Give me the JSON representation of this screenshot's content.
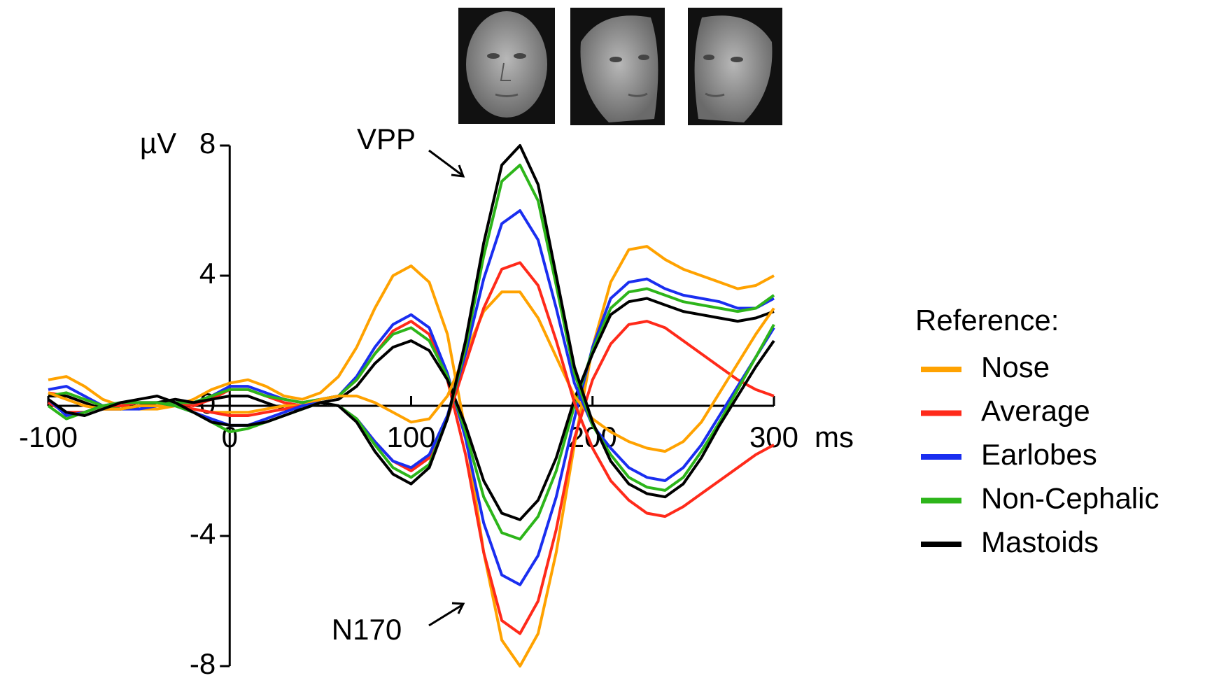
{
  "chart_data": {
    "type": "line",
    "x": [
      -100,
      -90,
      -80,
      -70,
      -60,
      -50,
      -40,
      -30,
      -20,
      -10,
      0,
      10,
      20,
      30,
      40,
      50,
      60,
      70,
      80,
      90,
      100,
      110,
      120,
      130,
      140,
      150,
      160,
      170,
      180,
      190,
      200,
      210,
      220,
      230,
      240,
      250,
      260,
      270,
      280,
      290,
      300
    ],
    "xlim": [
      -100,
      300
    ],
    "xticks": [
      -100,
      0,
      100,
      200,
      300
    ],
    "ylim": [
      -8,
      8
    ],
    "yticks": [
      -8,
      -4,
      0,
      4,
      8
    ],
    "y_unit": "µV",
    "x_unit": "ms",
    "legend_title": "Reference:",
    "annotations": [
      {
        "text": "VPP"
      },
      {
        "text": "N170"
      }
    ],
    "series": [
      {
        "name": "Nose",
        "color": "#ffa200",
        "values": [
          0.8,
          0.9,
          0.6,
          0.2,
          0,
          -0.1,
          -0.1,
          0,
          0.2,
          0.5,
          0.7,
          0.8,
          0.6,
          0.3,
          0.2,
          0.4,
          0.9,
          1.8,
          3.0,
          4.0,
          4.3,
          3.8,
          2.2,
          -0.8,
          -4.5,
          -7.2,
          -8.0,
          -7.0,
          -4.5,
          -1.2,
          1.8,
          3.8,
          4.8,
          4.9,
          4.5,
          4.2,
          4.0,
          3.8,
          3.6,
          3.7,
          4.0
        ]
      },
      {
        "name": "Average",
        "color": "#ff2a1a",
        "values": [
          0.4,
          0.3,
          0.1,
          -0.1,
          -0.1,
          0,
          0.1,
          0.1,
          0,
          0.2,
          0.5,
          0.5,
          0.3,
          0.1,
          0,
          0.2,
          0.3,
          0.8,
          1.6,
          2.3,
          2.6,
          2.2,
          0.8,
          -1.5,
          -4.5,
          -6.6,
          -7.0,
          -6.0,
          -3.8,
          -1.0,
          0.8,
          1.9,
          2.5,
          2.6,
          2.4,
          2.0,
          1.6,
          1.2,
          0.8,
          0.5,
          0.3
        ]
      },
      {
        "name": "Earlobes",
        "color": "#1a2ef0",
        "values": [
          0.5,
          0.6,
          0.3,
          0,
          -0.1,
          -0.1,
          0,
          0.1,
          0.1,
          0.3,
          0.6,
          0.6,
          0.4,
          0.2,
          0.1,
          0.2,
          0.3,
          0.9,
          1.8,
          2.5,
          2.8,
          2.4,
          1.0,
          -1.0,
          -3.6,
          -5.2,
          -5.5,
          -4.6,
          -2.8,
          -0.4,
          1.8,
          3.3,
          3.8,
          3.9,
          3.6,
          3.4,
          3.3,
          3.2,
          3.0,
          3.0,
          3.3
        ]
      },
      {
        "name": "Non-Cephalic",
        "color": "#2db51a",
        "values": [
          0.3,
          0.4,
          0.2,
          0,
          -0.1,
          0,
          0.1,
          0.1,
          0.1,
          0.3,
          0.5,
          0.5,
          0.3,
          0.2,
          0.1,
          0.2,
          0.3,
          0.8,
          1.6,
          2.2,
          2.4,
          2.0,
          0.9,
          -0.8,
          -2.8,
          -3.9,
          -4.1,
          -3.4,
          -2.0,
          0,
          1.7,
          3.0,
          3.5,
          3.6,
          3.4,
          3.2,
          3.1,
          3.0,
          2.9,
          3.0,
          3.4
        ]
      },
      {
        "name": "Mastoids",
        "color": "#000000",
        "values": [
          0.3,
          0.3,
          0.1,
          -0.1,
          -0.1,
          0,
          0.1,
          0.2,
          0.1,
          0.2,
          0.3,
          0.3,
          0.1,
          -0.1,
          -0.1,
          0.1,
          0.2,
          0.6,
          1.3,
          1.8,
          2.0,
          1.7,
          0.8,
          -0.6,
          -2.3,
          -3.3,
          -3.5,
          -2.9,
          -1.6,
          0.2,
          1.6,
          2.8,
          3.2,
          3.3,
          3.1,
          2.9,
          2.8,
          2.7,
          2.6,
          2.7,
          2.9
        ]
      },
      {
        "color": "#ffa200",
        "values": [
          0.4,
          0.2,
          0,
          -0.1,
          -0.1,
          0,
          0,
          0,
          -0.1,
          -0.2,
          -0.2,
          -0.2,
          -0.1,
          0,
          0,
          0.2,
          0.3,
          0.3,
          0.1,
          -0.2,
          -0.5,
          -0.4,
          0.3,
          1.6,
          2.9,
          3.5,
          3.5,
          2.7,
          1.5,
          0.3,
          -0.4,
          -0.8,
          -1.1,
          -1.3,
          -1.4,
          -1.1,
          -0.5,
          0.4,
          1.3,
          2.2,
          3.0
        ]
      },
      {
        "color": "#ff2a1a",
        "values": [
          0.1,
          -0.2,
          -0.2,
          0,
          0,
          0.1,
          0.1,
          0,
          -0.1,
          -0.2,
          -0.3,
          -0.3,
          -0.2,
          -0.1,
          0,
          0.1,
          0,
          -0.4,
          -1.1,
          -1.7,
          -2.0,
          -1.6,
          -0.4,
          1.3,
          3.0,
          4.2,
          4.4,
          3.7,
          2.0,
          0.1,
          -1.3,
          -2.3,
          -2.9,
          -3.3,
          -3.4,
          -3.1,
          -2.7,
          -2.3,
          -1.9,
          -1.5,
          -1.2
        ]
      },
      {
        "color": "#1a2ef0",
        "values": [
          0.2,
          -0.3,
          -0.2,
          0,
          0.1,
          0.1,
          0.1,
          0,
          -0.2,
          -0.4,
          -0.6,
          -0.6,
          -0.4,
          -0.2,
          0,
          0.1,
          0,
          -0.4,
          -1.1,
          -1.7,
          -1.9,
          -1.5,
          -0.3,
          1.6,
          3.9,
          5.6,
          6.0,
          5.1,
          3.0,
          0.7,
          -0.6,
          -1.3,
          -1.9,
          -2.2,
          -2.3,
          -1.9,
          -1.2,
          -0.3,
          0.6,
          1.5,
          2.4
        ]
      },
      {
        "color": "#2db51a",
        "values": [
          0,
          -0.4,
          -0.2,
          0,
          0.1,
          0.1,
          0.1,
          0,
          -0.2,
          -0.5,
          -0.8,
          -0.7,
          -0.5,
          -0.3,
          -0.1,
          0.1,
          0,
          -0.4,
          -1.2,
          -1.9,
          -2.2,
          -1.8,
          -0.4,
          1.8,
          4.6,
          6.9,
          7.4,
          6.3,
          3.7,
          1.0,
          -0.6,
          -1.5,
          -2.2,
          -2.5,
          -2.6,
          -2.2,
          -1.4,
          -0.5,
          0.5,
          1.5,
          2.5
        ]
      },
      {
        "color": "#000000",
        "values": [
          0.2,
          -0.2,
          -0.3,
          -0.1,
          0.1,
          0.2,
          0.3,
          0.1,
          -0.2,
          -0.5,
          -0.6,
          -0.6,
          -0.5,
          -0.3,
          -0.1,
          0.1,
          0,
          -0.5,
          -1.4,
          -2.1,
          -2.4,
          -1.9,
          -0.4,
          2.0,
          5.0,
          7.4,
          8.0,
          6.8,
          4.0,
          1.2,
          -0.5,
          -1.7,
          -2.4,
          -2.7,
          -2.8,
          -2.4,
          -1.6,
          -0.6,
          0.3,
          1.2,
          2.0
        ]
      }
    ]
  }
}
